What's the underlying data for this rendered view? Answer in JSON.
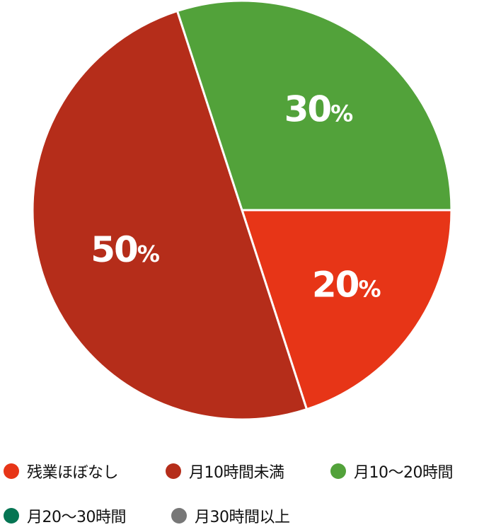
{
  "chart_data": {
    "type": "pie",
    "start_angle_deg": 90,
    "direction": "clockwise",
    "legend_position": "bottom",
    "slices": [
      {
        "label": "残業ほぼなし",
        "value": 20,
        "display": "20",
        "color": "#e73517"
      },
      {
        "label": "月10時間未満",
        "value": 50,
        "display": "50",
        "color": "#b52d1a"
      },
      {
        "label": "月10〜20時間",
        "value": 30,
        "display": "30",
        "color": "#52a23a"
      },
      {
        "label": "月20〜30時間",
        "value": 0,
        "display": "",
        "color": "#057553"
      },
      {
        "label": "月30時間以上",
        "value": 0,
        "display": "",
        "color": "#777777"
      }
    ],
    "unit": "%"
  }
}
